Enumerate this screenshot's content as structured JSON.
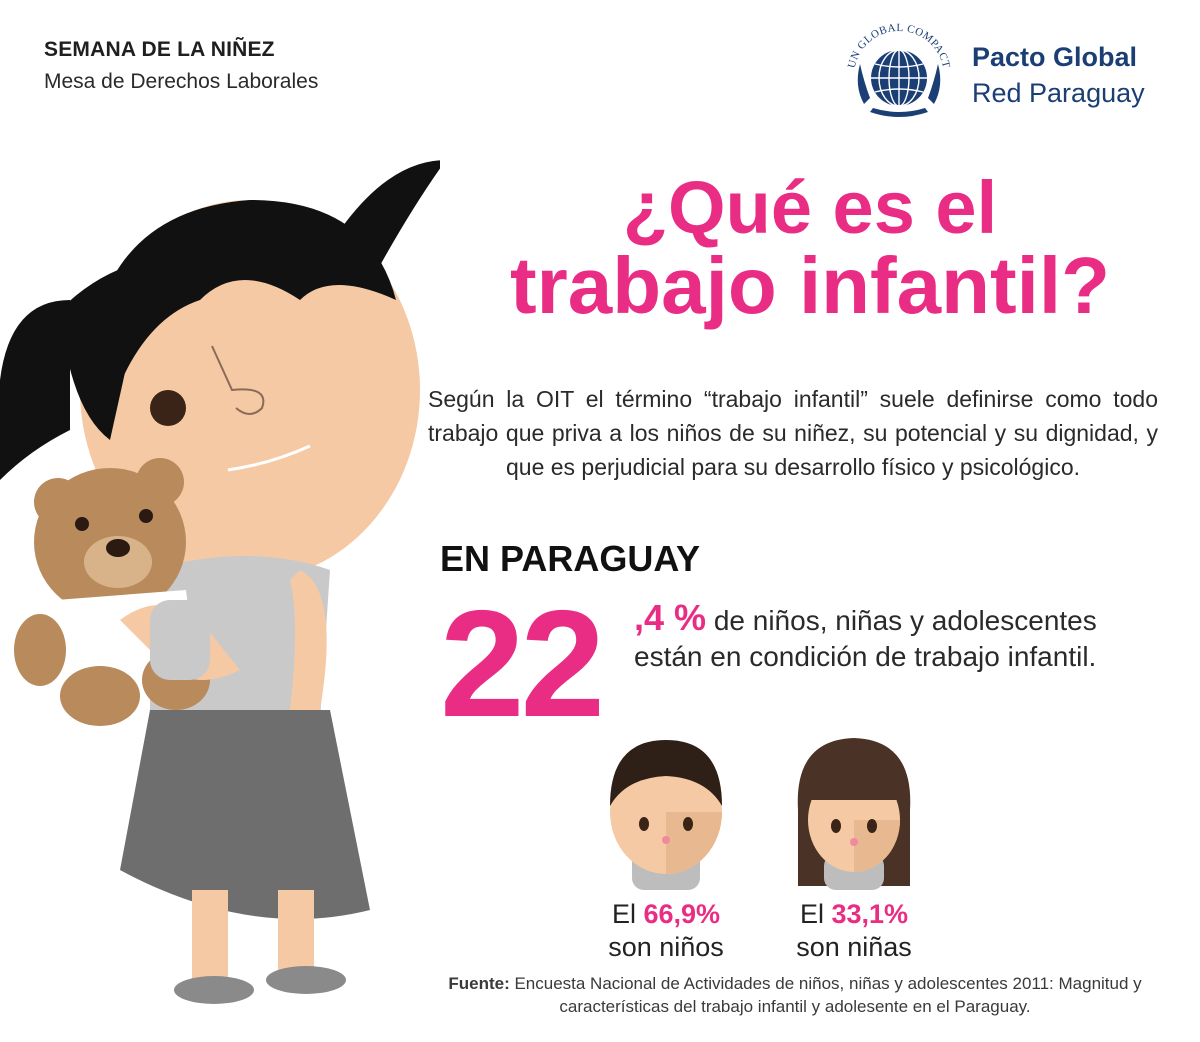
{
  "header": {
    "title": "SEMANA DE LA NIÑEZ",
    "subtitle": "Mesa de Derechos Laborales"
  },
  "brand": {
    "logo_text": "UN GLOBAL COMPACT",
    "name": "Pacto Global",
    "sub": "Red Paraguay"
  },
  "headline": {
    "line1": "¿Qué es el",
    "line2": "trabajo infantil?"
  },
  "definition": "Según la OIT el término “trabajo infantil” suele definirse como todo trabajo que priva a los niños de su niñez, su potencial y su dignidad, y que es perjudicial para su desarrollo físico y psicológico.",
  "country_heading": "EN PARAGUAY",
  "stat_main": {
    "integer": "22",
    "decimal": ",4 %",
    "text": " de niños, niñas y adolescentes están en condición de trabajo infantil."
  },
  "boys": {
    "prefix": "El ",
    "value": "66,9%",
    "label": "son niños"
  },
  "girls": {
    "prefix": "El ",
    "value": "33,1%",
    "label": "son niñas"
  },
  "source": {
    "label": "Fuente:",
    "text": " Encuesta Nacional de Actividades de niños, niñas y adolescentes 2011: Magnitud y características del trabajo infantil y adolesente en el Paraguay."
  },
  "colors": {
    "accent": "#ea2d84",
    "brand": "#1b3f75",
    "hair": "#111111",
    "skin": "#f5c9a4",
    "bear": "#b88a5c"
  },
  "icons": [
    "un-globe-logo-icon",
    "girl-with-teddy-illustration",
    "boy-face-icon",
    "girl-face-icon"
  ]
}
